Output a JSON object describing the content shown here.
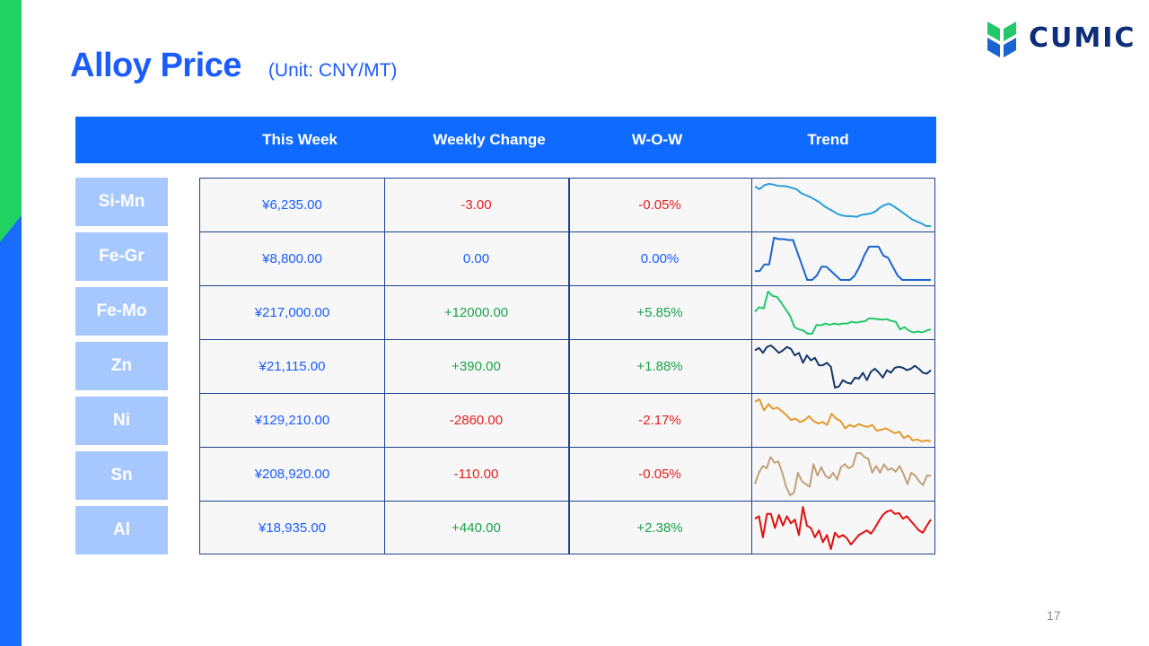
{
  "title": "Alloy Price",
  "unit": "(Unit: CNY/MT)",
  "logo": {
    "text": "CUMIC",
    "icon": "cumic-logo-icon"
  },
  "headers": [
    "",
    "This Week",
    "Weekly Change",
    "W-O-W",
    "Trend"
  ],
  "rows": [
    {
      "name": "Si-Mn",
      "price": "¥6,235.00",
      "change": "-3.00",
      "wow": "-0.05%",
      "dir": "neg",
      "trend_color": "#2a9fd8",
      "trend": [
        90,
        86,
        92,
        94,
        93,
        91,
        91,
        90,
        88,
        86,
        80,
        77,
        74,
        70,
        66,
        60,
        56,
        52,
        48,
        46,
        45,
        45,
        44,
        47,
        48,
        49,
        52,
        58,
        62,
        64,
        60,
        55,
        50,
        45,
        40,
        37,
        34,
        30,
        30
      ]
    },
    {
      "name": "Fe-Gr",
      "price": "¥8,800.00",
      "change": "0.00",
      "wow": "0.00%",
      "dir": "neu",
      "trend_color": "#1a64d0",
      "trend": [
        20,
        20,
        35,
        35,
        95,
        92,
        92,
        90,
        90,
        60,
        30,
        0,
        0,
        10,
        30,
        30,
        20,
        10,
        0,
        0,
        0,
        10,
        30,
        55,
        75,
        75,
        75,
        55,
        50,
        30,
        10,
        0,
        0,
        0,
        0,
        0,
        0,
        0
      ]
    },
    {
      "name": "Fe-Mo",
      "price": "¥217,000.00",
      "change": "+12000.00",
      "wow": "+5.85%",
      "dir": "pos",
      "trend_color": "#22c86a",
      "trend": [
        55,
        65,
        62,
        100,
        90,
        88,
        75,
        60,
        45,
        20,
        15,
        12,
        5,
        5,
        25,
        24,
        28,
        25,
        28,
        26,
        28,
        28,
        32,
        30,
        32,
        33,
        40,
        39,
        38,
        37,
        38,
        34,
        32,
        15,
        20,
        12,
        8,
        10,
        8,
        12,
        15
      ]
    },
    {
      "name": "Zn",
      "price": "¥21,115.00",
      "change": "+390.00",
      "wow": "+1.88%",
      "dir": "pos",
      "trend_color": "#16386b",
      "trend": [
        85,
        90,
        80,
        92,
        95,
        88,
        80,
        85,
        92,
        88,
        75,
        80,
        60,
        75,
        65,
        70,
        55,
        55,
        60,
        52,
        10,
        12,
        25,
        20,
        18,
        30,
        28,
        40,
        25,
        42,
        48,
        40,
        30,
        45,
        40,
        50,
        52,
        50,
        45,
        48,
        54,
        48,
        40,
        38,
        45
      ]
    },
    {
      "name": "Ni",
      "price": "¥129,210.00",
      "change": "-2860.00",
      "wow": "-2.17%",
      "dir": "neg",
      "trend_color": "#e5992d",
      "trend": [
        90,
        95,
        72,
        85,
        75,
        78,
        70,
        62,
        52,
        55,
        48,
        52,
        60,
        50,
        45,
        48,
        42,
        65,
        55,
        50,
        35,
        42,
        38,
        44,
        40,
        38,
        42,
        30,
        32,
        35,
        30,
        25,
        28,
        15,
        20,
        10,
        12,
        8,
        10,
        8
      ]
    },
    {
      "name": "Sn",
      "price": "¥208,920.00",
      "change": "-110.00",
      "wow": "-0.05%",
      "dir": "neg",
      "trend_color": "#c2a17a",
      "trend": [
        40,
        60,
        72,
        68,
        88,
        78,
        80,
        60,
        35,
        20,
        25,
        60,
        45,
        40,
        35,
        75,
        55,
        70,
        55,
        50,
        60,
        48,
        70,
        75,
        68,
        72,
        95,
        95,
        88,
        85,
        60,
        72,
        60,
        75,
        65,
        68,
        62,
        72,
        58,
        40,
        60,
        55,
        45,
        38,
        55,
        55
      ]
    },
    {
      "name": "Al",
      "price": "¥18,935.00",
      "change": "+440.00",
      "wow": "+2.38%",
      "dir": "pos",
      "trend_color": "#e01010",
      "trend": [
        70,
        75,
        30,
        80,
        80,
        50,
        78,
        55,
        75,
        60,
        68,
        35,
        95,
        55,
        50,
        30,
        45,
        20,
        35,
        5,
        40,
        30,
        35,
        28,
        15,
        25,
        35,
        40,
        45,
        38,
        50,
        65,
        78,
        85,
        88,
        80,
        82,
        70,
        75,
        65,
        55,
        45,
        40,
        55,
        68
      ]
    }
  ],
  "page_number": "17"
}
